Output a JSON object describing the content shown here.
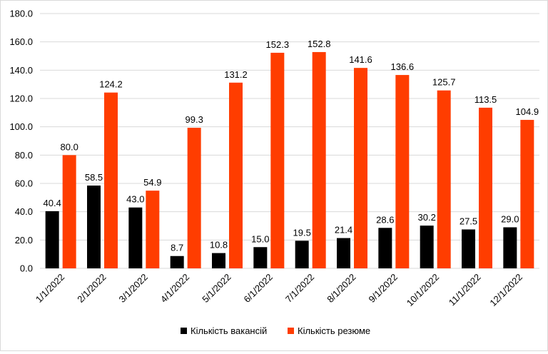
{
  "chart_data": {
    "type": "bar",
    "title": "",
    "xlabel": "",
    "ylabel": "",
    "categories": [
      "1/1/2022",
      "2/1/2022",
      "3/1/2022",
      "4/1/2022",
      "5/1/2022",
      "6/1/2022",
      "7/1/2022",
      "8/1/2022",
      "9/1/2022",
      "10/1/2022",
      "11/1/2022",
      "12/1/2022"
    ],
    "series": [
      {
        "name": "Кількість вакансій",
        "color": "#000000",
        "values": [
          40.4,
          58.5,
          43.0,
          8.7,
          10.8,
          15.0,
          19.5,
          21.4,
          28.6,
          30.2,
          27.5,
          29.0
        ],
        "labels": [
          "40.4",
          "58.5",
          "43.0",
          "8.7",
          "10.8",
          "15.0",
          "19.5",
          "21.4",
          "28.6",
          "30.2",
          "27.5",
          "29.0"
        ]
      },
      {
        "name": "Кількість резюме",
        "color": "#ff3d00",
        "values": [
          80.0,
          124.2,
          54.9,
          99.3,
          131.2,
          152.3,
          152.8,
          141.6,
          136.6,
          125.7,
          113.5,
          104.9
        ],
        "labels": [
          "80.0",
          "124.2",
          "54.9",
          "99.3",
          "131.2",
          "152.3",
          "152.8",
          "141.6",
          "136.6",
          "125.7",
          "113.5",
          "104.9"
        ]
      }
    ],
    "ylim": [
      0,
      180
    ],
    "yticks": [
      0,
      20,
      40,
      60,
      80,
      100,
      120,
      140,
      160,
      180
    ],
    "ytick_labels": [
      "0.0",
      "20.0",
      "40.0",
      "60.0",
      "80.0",
      "100.0",
      "120.0",
      "140.0",
      "160.0",
      "180.0"
    ],
    "grid": true,
    "legend_position": "bottom"
  }
}
